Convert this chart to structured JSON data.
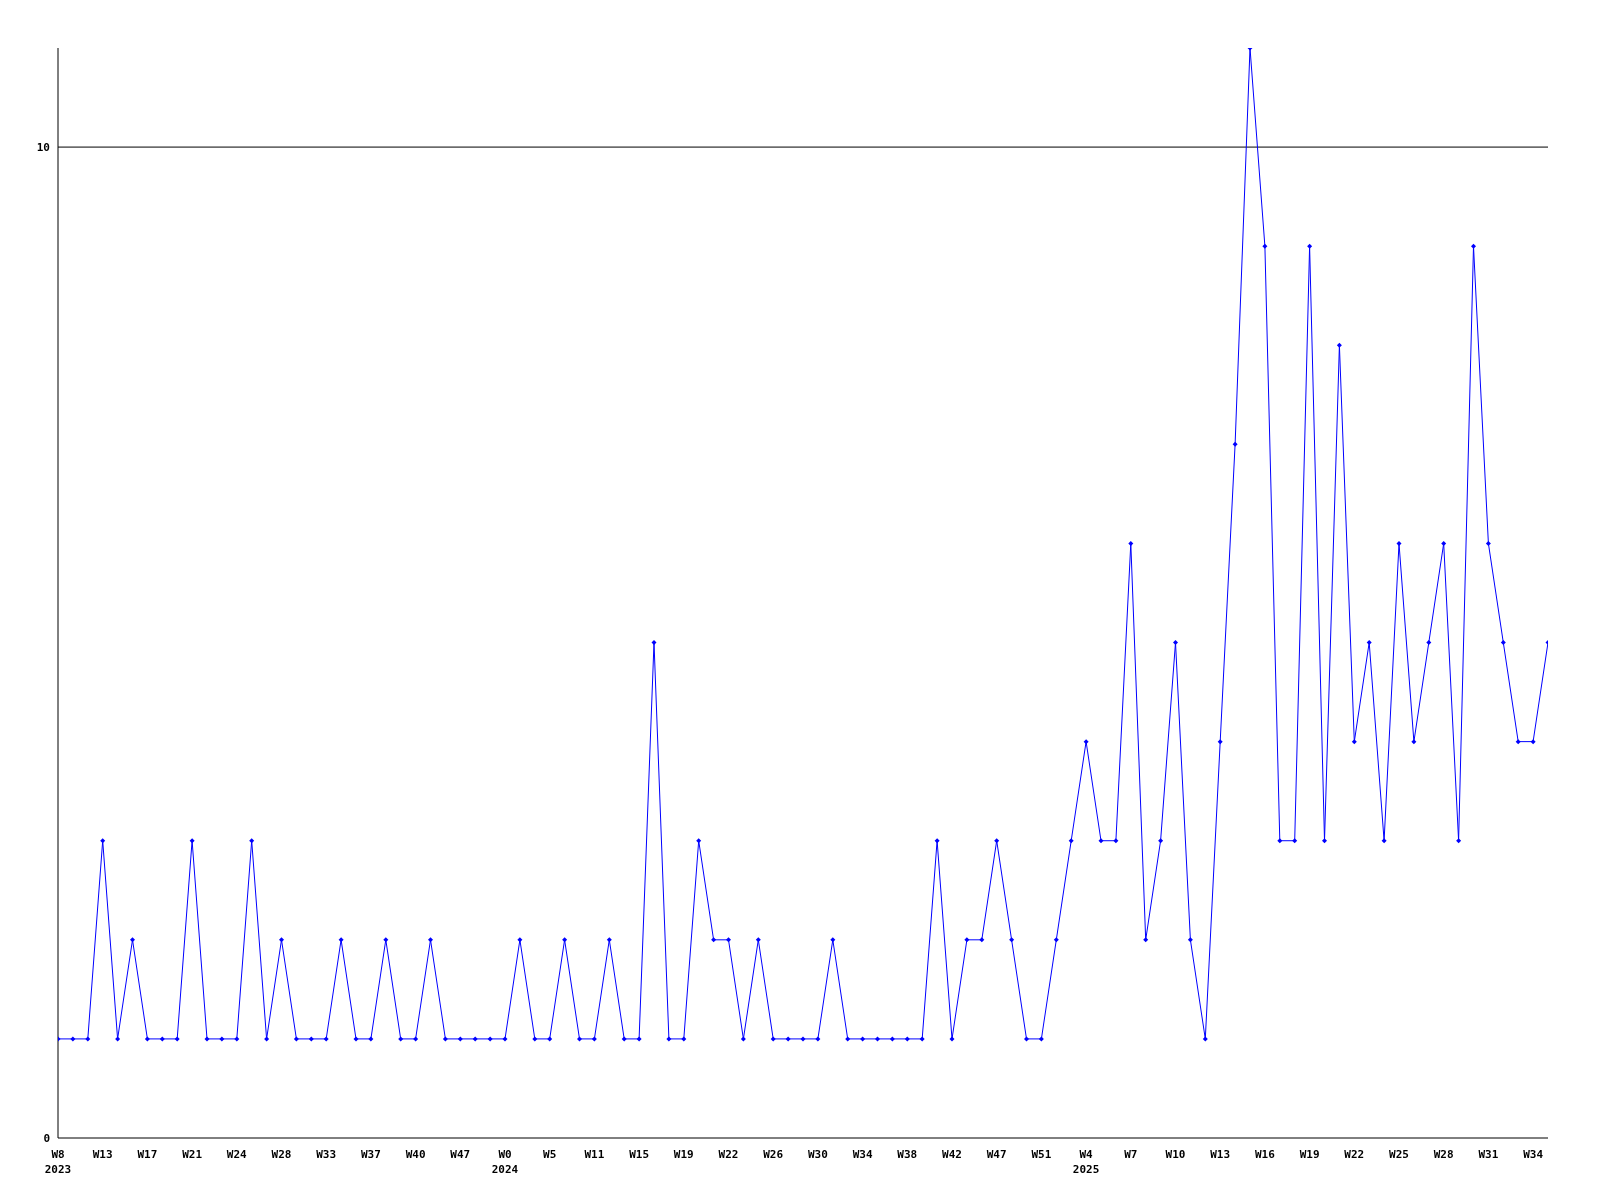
{
  "chart_data": {
    "type": "line",
    "categories": [
      "W8\n2023",
      null,
      null,
      "W13",
      null,
      null,
      "W17",
      null,
      null,
      "W21",
      null,
      null,
      "W24",
      null,
      null,
      "W28",
      null,
      null,
      "W33",
      null,
      null,
      "W37",
      null,
      null,
      "W40",
      null,
      null,
      "W47",
      null,
      null,
      "W0\n2024",
      null,
      null,
      "W5",
      null,
      null,
      "W11",
      null,
      null,
      "W15",
      null,
      null,
      "W19",
      null,
      null,
      "W22",
      null,
      null,
      "W26",
      null,
      null,
      "W30",
      null,
      null,
      "W34",
      null,
      null,
      "W38",
      null,
      null,
      "W42",
      null,
      null,
      "W47",
      null,
      null,
      "W51",
      null,
      null,
      "W4\n2025",
      null,
      null,
      "W7",
      null,
      null,
      "W10",
      null,
      null,
      "W13",
      null,
      null,
      "W16",
      null,
      null,
      "W19",
      null,
      null,
      "W22",
      null,
      null,
      "W25",
      null,
      null,
      "W28",
      null,
      null,
      "W31",
      null,
      null,
      "W34",
      null
    ],
    "series": [
      {
        "color": "#0000ff",
        "values": [
          1,
          1,
          1,
          3,
          1,
          2,
          1,
          1,
          1,
          3,
          1,
          1,
          1,
          3,
          1,
          2,
          1,
          1,
          1,
          2,
          1,
          1,
          2,
          1,
          1,
          2,
          1,
          1,
          1,
          1,
          1,
          2,
          1,
          1,
          2,
          1,
          1,
          2,
          1,
          1,
          5,
          1,
          1,
          3,
          2,
          2,
          1,
          2,
          1,
          1,
          1,
          1,
          2,
          1,
          1,
          1,
          1,
          1,
          1,
          3,
          1,
          2,
          2,
          3,
          2,
          1,
          1,
          2,
          3,
          4,
          3,
          3,
          6,
          2,
          3,
          5,
          2,
          1,
          4,
          7,
          11,
          9,
          3,
          3,
          9,
          3,
          8,
          4,
          5,
          3,
          6,
          4,
          5,
          6,
          3,
          9,
          6,
          5,
          4,
          4,
          5
        ]
      }
    ],
    "ylim": [
      0,
      11
    ],
    "yticks": [
      0,
      10
    ],
    "grid": "y",
    "marker": "diamond",
    "line_style": "solid"
  }
}
